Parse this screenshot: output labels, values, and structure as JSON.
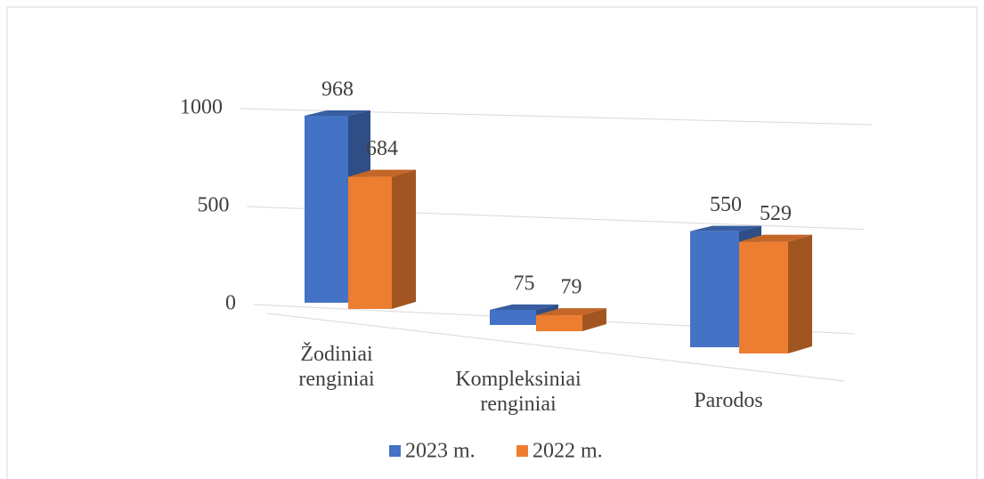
{
  "chart_data": {
    "type": "bar3d",
    "categories": [
      "Žodiniai renginiai",
      "Kompleksiniai renginiai",
      "Parodos"
    ],
    "series": [
      {
        "name": "2023 m.",
        "color": "#4472c4",
        "values": [
          968,
          75,
          550
        ]
      },
      {
        "name": "2022 m.",
        "color": "#ed7d31",
        "values": [
          684,
          79,
          529
        ]
      }
    ],
    "ylim": [
      0,
      1000
    ],
    "yticks": [
      0,
      500,
      1000
    ],
    "grid": true,
    "legend": "bottom"
  }
}
